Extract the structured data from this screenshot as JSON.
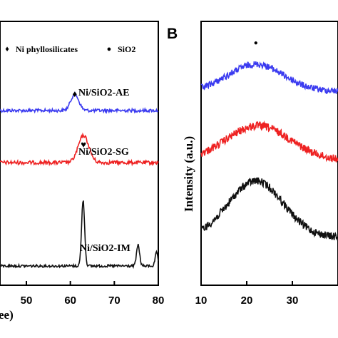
{
  "chart_data": [
    {
      "panel": "A",
      "type": "line",
      "panel_label": "",
      "xlabel": "ee)",
      "ylabel": "",
      "xlim": [
        44,
        80
      ],
      "x_ticks": [
        50,
        60,
        70,
        80
      ],
      "x_tick_labels": [
        "50",
        "60",
        "70",
        "80"
      ],
      "legend": [
        {
          "marker": "♦",
          "label": "Ni phyllosilicates"
        },
        {
          "marker": "●",
          "label": "SiO2"
        }
      ],
      "series": [
        {
          "name": "Ni/SiO2-AE",
          "color": "#3b3bf0",
          "peaks": [
            {
              "x": 61.0,
              "height": 0.55,
              "width": 0.9
            }
          ],
          "marker": "♦",
          "marker_x": 61.0
        },
        {
          "name": "Ni/SiO2-SG",
          "color": "#ee2222",
          "peaks": [
            {
              "x": 63.0,
              "height": 0.9,
              "width": 1.2
            }
          ],
          "marker": "♥",
          "marker_x": 63.0
        },
        {
          "name": "Ni/SiO2-IM",
          "color": "#111111",
          "peaks": [
            {
              "x": 62.9,
              "height": 2.2,
              "width": 0.35
            },
            {
              "x": 75.4,
              "height": 0.7,
              "width": 0.35
            },
            {
              "x": 79.6,
              "height": 0.45,
              "width": 0.3
            }
          ]
        }
      ]
    },
    {
      "panel": "B",
      "type": "line",
      "panel_label": "B",
      "xlabel": "",
      "ylabel": "Intensity (a.u.)",
      "xlim": [
        10,
        40
      ],
      "x_ticks": [
        10,
        20,
        30
      ],
      "x_tick_labels": [
        "10",
        "20",
        "30"
      ],
      "annotation": {
        "marker": "●",
        "x": 22
      },
      "series": [
        {
          "name": "Ni/SiO2-AE",
          "color": "#3b3bf0",
          "peak_x": 22,
          "height": 1.0
        },
        {
          "name": "Ni/SiO2-SG",
          "color": "#ee2222",
          "peak_x": 22.5,
          "height": 0.9
        },
        {
          "name": "Ni/SiO2-IM",
          "color": "#111111",
          "peak_x": 22,
          "height": 1.2
        }
      ]
    }
  ]
}
